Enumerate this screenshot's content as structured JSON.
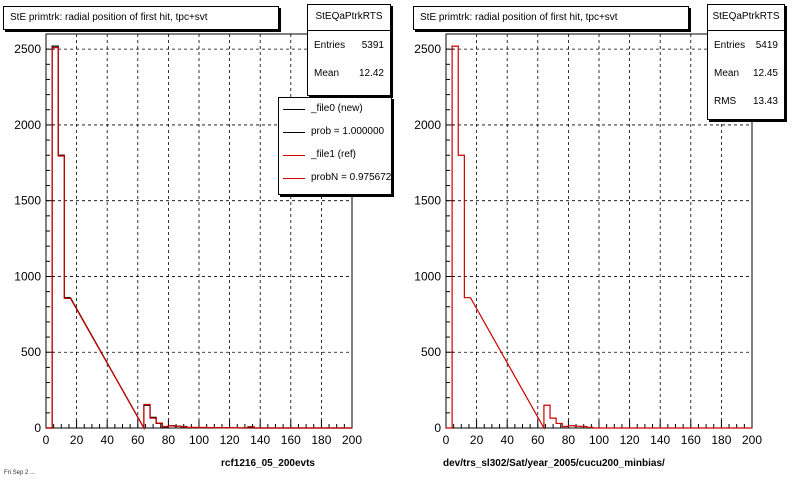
{
  "panels": [
    {
      "title": "StE primtrk: radial position of first hit, tpc+svt",
      "stats": {
        "name": "StEQaPtrkRTS",
        "rows": [
          {
            "label": "Entries",
            "value": "5391"
          },
          {
            "label": "Mean",
            "value": "12.42"
          }
        ]
      },
      "legend": [
        {
          "label": "_file0 (new)",
          "color": "#000000"
        },
        {
          "label": "prob = 1.000000",
          "color": "#000000"
        },
        {
          "label": "_file1 (ref)",
          "color": "#cc0000"
        },
        {
          "label": "probN = 0.975672",
          "color": "#cc0000"
        }
      ],
      "footer": "rcf1216_05_200evts"
    },
    {
      "title": "StE primtrk: radial position of first hit, tpc+svt",
      "stats": {
        "name": "StEQaPtrkRTS",
        "rows": [
          {
            "label": "Entries",
            "value": "5419"
          },
          {
            "label": "Mean",
            "value": "12.45"
          },
          {
            "label": "RMS",
            "value": "13.43"
          }
        ]
      },
      "footer": "dev/trs_sl302/Sat/year_2005/cucu200_minbias/"
    }
  ],
  "timestamp": "Fri Sep  2 ...",
  "chart_data": [
    {
      "type": "histogram",
      "xlim": [
        0,
        200
      ],
      "ylim": [
        0,
        2600
      ],
      "xticks": [
        0,
        20,
        40,
        60,
        80,
        100,
        120,
        140,
        160,
        180,
        200
      ],
      "yticks": [
        0,
        500,
        1000,
        1500,
        2000,
        2500
      ],
      "grid": true,
      "bin_width": 4,
      "series": [
        {
          "name": "_file0 (new)",
          "color": "#000000",
          "bins": [
            [
              4,
              2520
            ],
            [
              8,
              1800
            ],
            [
              12,
              860
            ],
            [
              64,
              150
            ],
            [
              68,
              70
            ],
            [
              72,
              30
            ],
            [
              76,
              8
            ],
            [
              80,
              15
            ],
            [
              84,
              12
            ],
            [
              88,
              10
            ],
            [
              92,
              3
            ],
            [
              132,
              8
            ]
          ]
        },
        {
          "name": "_file1 (ref)",
          "color": "#cc0000",
          "bins": [
            [
              4,
              2510
            ],
            [
              8,
              1795
            ],
            [
              12,
              855
            ],
            [
              64,
              155
            ],
            [
              68,
              65
            ],
            [
              72,
              32
            ],
            [
              76,
              10
            ],
            [
              80,
              14
            ],
            [
              84,
              12
            ],
            [
              88,
              9
            ],
            [
              92,
              4
            ],
            [
              132,
              7
            ]
          ]
        }
      ]
    },
    {
      "type": "histogram",
      "xlim": [
        0,
        200
      ],
      "ylim": [
        0,
        2600
      ],
      "xticks": [
        0,
        20,
        40,
        60,
        80,
        100,
        120,
        140,
        160,
        180,
        200
      ],
      "yticks": [
        0,
        500,
        1000,
        1500,
        2000,
        2500
      ],
      "grid": true,
      "bin_width": 4,
      "series": [
        {
          "color": "#cc0000",
          "bins": [
            [
              4,
              2520
            ],
            [
              8,
              1800
            ],
            [
              12,
              860
            ],
            [
              64,
              150
            ],
            [
              68,
              65
            ],
            [
              72,
              30
            ],
            [
              76,
              10
            ],
            [
              80,
              15
            ],
            [
              84,
              12
            ],
            [
              88,
              10
            ],
            [
              92,
              4
            ]
          ]
        }
      ]
    }
  ]
}
